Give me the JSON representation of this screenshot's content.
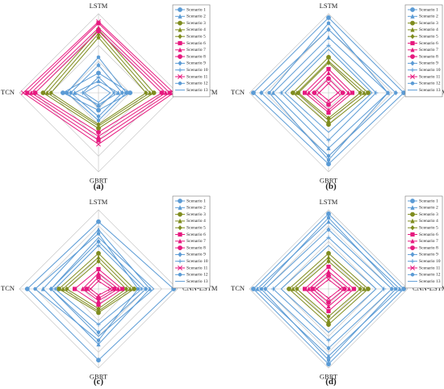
{
  "chart_data": [
    {
      "type": "radar",
      "panel_label": "(a)",
      "axes": [
        "LSTM",
        "CNN-LSTM",
        "GBRT",
        "TCN"
      ],
      "grid": true,
      "legend_position": "right",
      "series": [
        {
          "name": "Scenario 1",
          "color": "#5b9bd5",
          "marker": "circle",
          "values": {
            "LSTM": 0.25,
            "CNN-LSTM": 0.4,
            "GBRT": 0.22,
            "TCN": 0.45
          }
        },
        {
          "name": "Scenario 2",
          "color": "#5b9bd5",
          "marker": "triangle",
          "values": {
            "LSTM": 0.15,
            "CNN-LSTM": 0.25,
            "GBRT": 0.15,
            "TCN": 0.3
          }
        },
        {
          "name": "Scenario 3",
          "color": "#7f8c1e",
          "marker": "circle",
          "values": {
            "LSTM": 0.8,
            "CNN-LSTM": 0.7,
            "GBRT": 0.45,
            "TCN": 0.7
          }
        },
        {
          "name": "Scenario 4",
          "color": "#7f8c1e",
          "marker": "triangle",
          "values": {
            "LSTM": 0.75,
            "CNN-LSTM": 0.65,
            "GBRT": 0.42,
            "TCN": 0.65
          }
        },
        {
          "name": "Scenario 5",
          "color": "#7f8c1e",
          "marker": "diamond",
          "values": {
            "LSTM": 0.7,
            "CNN-LSTM": 0.6,
            "GBRT": 0.4,
            "TCN": 0.6
          }
        },
        {
          "name": "Scenario 6",
          "color": "#e6197f",
          "marker": "square",
          "values": {
            "LSTM": 0.88,
            "CNN-LSTM": 0.9,
            "GBRT": 0.6,
            "TCN": 0.9
          }
        },
        {
          "name": "Scenario 7",
          "color": "#e6197f",
          "marker": "triangle",
          "values": {
            "LSTM": 0.82,
            "CNN-LSTM": 0.85,
            "GBRT": 0.55,
            "TCN": 0.85
          }
        },
        {
          "name": "Scenario 8",
          "color": "#e6197f",
          "marker": "circle",
          "values": {
            "LSTM": 0.78,
            "CNN-LSTM": 0.8,
            "GBRT": 0.5,
            "TCN": 0.8
          }
        },
        {
          "name": "Scenario 9",
          "color": "#5b9bd5",
          "marker": "diamond",
          "values": {
            "LSTM": 0.35,
            "CNN-LSTM": 0.3,
            "GBRT": 0.3,
            "TCN": 0.35
          }
        },
        {
          "name": "Scenario 10",
          "color": "#5b9bd5",
          "marker": "plus",
          "values": {
            "LSTM": 0.2,
            "CNN-LSTM": 0.2,
            "GBRT": 0.18,
            "TCN": 0.2
          }
        },
        {
          "name": "Scenario 11",
          "color": "#e6197f",
          "marker": "cross",
          "values": {
            "LSTM": 0.9,
            "CNN-LSTM": 0.95,
            "GBRT": 0.65,
            "TCN": 0.95
          }
        },
        {
          "name": "Scenario 12",
          "color": "#5b9bd5",
          "marker": "circle-small",
          "values": {
            "LSTM": 0.45,
            "CNN-LSTM": 0.35,
            "GBRT": 0.35,
            "TCN": 0.4
          }
        },
        {
          "name": "Scenario 13",
          "color": "#5b9bd5",
          "marker": "none",
          "values": {
            "LSTM": 0.1,
            "CNN-LSTM": 0.15,
            "GBRT": 0.12,
            "TCN": 0.18
          }
        }
      ]
    },
    {
      "type": "radar",
      "panel_label": "(b)",
      "axes": [
        "LSTM",
        "CNN-LSTM",
        "GBRT",
        "TCN"
      ],
      "grid": true,
      "legend_position": "top-right",
      "series": [
        {
          "name": "Scenario 1",
          "color": "#5b9bd5",
          "marker": "circle",
          "values": {
            "LSTM": 0.95,
            "CNN-LSTM": 0.95,
            "GBRT": 0.9,
            "TCN": 0.95
          }
        },
        {
          "name": "Scenario 2",
          "color": "#5b9bd5",
          "marker": "triangle",
          "values": {
            "LSTM": 0.7,
            "CNN-LSTM": 0.75,
            "GBRT": 0.7,
            "TCN": 0.7
          }
        },
        {
          "name": "Scenario 3",
          "color": "#7f8c1e",
          "marker": "circle",
          "values": {
            "LSTM": 0.45,
            "CNN-LSTM": 0.5,
            "GBRT": 0.4,
            "TCN": 0.45
          }
        },
        {
          "name": "Scenario 4",
          "color": "#7f8c1e",
          "marker": "triangle",
          "values": {
            "LSTM": 0.4,
            "CNN-LSTM": 0.45,
            "GBRT": 0.35,
            "TCN": 0.4
          }
        },
        {
          "name": "Scenario 5",
          "color": "#7f8c1e",
          "marker": "diamond",
          "values": {
            "LSTM": 0.38,
            "CNN-LSTM": 0.4,
            "GBRT": 0.32,
            "TCN": 0.38
          }
        },
        {
          "name": "Scenario 6",
          "color": "#e6197f",
          "marker": "square",
          "values": {
            "LSTM": 0.3,
            "CNN-LSTM": 0.3,
            "GBRT": 0.25,
            "TCN": 0.3
          }
        },
        {
          "name": "Scenario 7",
          "color": "#e6197f",
          "marker": "triangle",
          "values": {
            "LSTM": 0.25,
            "CNN-LSTM": 0.25,
            "GBRT": 0.22,
            "TCN": 0.25
          }
        },
        {
          "name": "Scenario 8",
          "color": "#e6197f",
          "marker": "circle",
          "values": {
            "LSTM": 0.18,
            "CNN-LSTM": 0.18,
            "GBRT": 0.15,
            "TCN": 0.18
          }
        },
        {
          "name": "Scenario 9",
          "color": "#5b9bd5",
          "marker": "diamond",
          "values": {
            "LSTM": 0.8,
            "CNN-LSTM": 0.85,
            "GBRT": 0.8,
            "TCN": 0.85
          }
        },
        {
          "name": "Scenario 10",
          "color": "#5b9bd5",
          "marker": "plus",
          "values": {
            "LSTM": 0.6,
            "CNN-LSTM": 0.6,
            "GBRT": 0.6,
            "TCN": 0.6
          }
        },
        {
          "name": "Scenario 11",
          "color": "#e6197f",
          "marker": "cross",
          "values": {
            "LSTM": 0.12,
            "CNN-LSTM": 0.12,
            "GBRT": 0.1,
            "TCN": 0.12
          }
        },
        {
          "name": "Scenario 12",
          "color": "#5b9bd5",
          "marker": "circle-small",
          "values": {
            "LSTM": 0.88,
            "CNN-LSTM": 0.75,
            "GBRT": 0.85,
            "TCN": 0.75
          }
        },
        {
          "name": "Scenario 13",
          "color": "#5b9bd5",
          "marker": "none",
          "values": {
            "LSTM": 0.55,
            "CNN-LSTM": 0.55,
            "GBRT": 0.5,
            "TCN": 0.55
          }
        }
      ]
    },
    {
      "type": "radar",
      "panel_label": "(c)",
      "axes": [
        "LSTM",
        "CNN-LSTM",
        "GBRT",
        "TCN"
      ],
      "grid": true,
      "legend_position": "right",
      "series": [
        {
          "name": "Scenario 1",
          "color": "#5b9bd5",
          "marker": "circle",
          "values": {
            "LSTM": 0.85,
            "CNN-LSTM": 0.95,
            "GBRT": 0.9,
            "TCN": 0.9
          }
        },
        {
          "name": "Scenario 2",
          "color": "#5b9bd5",
          "marker": "triangle",
          "values": {
            "LSTM": 0.75,
            "CNN-LSTM": 0.65,
            "GBRT": 0.7,
            "TCN": 0.7
          }
        },
        {
          "name": "Scenario 3",
          "color": "#7f8c1e",
          "marker": "circle",
          "values": {
            "LSTM": 0.45,
            "CNN-LSTM": 0.45,
            "GBRT": 0.3,
            "TCN": 0.5
          }
        },
        {
          "name": "Scenario 4",
          "color": "#7f8c1e",
          "marker": "triangle",
          "values": {
            "LSTM": 0.4,
            "CNN-LSTM": 0.4,
            "GBRT": 0.28,
            "TCN": 0.45
          }
        },
        {
          "name": "Scenario 5",
          "color": "#7f8c1e",
          "marker": "diamond",
          "values": {
            "LSTM": 0.35,
            "CNN-LSTM": 0.35,
            "GBRT": 0.25,
            "TCN": 0.4
          }
        },
        {
          "name": "Scenario 6",
          "color": "#e6197f",
          "marker": "square",
          "values": {
            "LSTM": 0.25,
            "CNN-LSTM": 0.3,
            "GBRT": 0.2,
            "TCN": 0.3
          }
        },
        {
          "name": "Scenario 7",
          "color": "#e6197f",
          "marker": "triangle",
          "values": {
            "LSTM": 0.2,
            "CNN-LSTM": 0.25,
            "GBRT": 0.15,
            "TCN": 0.2
          }
        },
        {
          "name": "Scenario 8",
          "color": "#e6197f",
          "marker": "circle",
          "values": {
            "LSTM": 0.15,
            "CNN-LSTM": 0.2,
            "GBRT": 0.12,
            "TCN": 0.15
          }
        },
        {
          "name": "Scenario 9",
          "color": "#5b9bd5",
          "marker": "diamond",
          "values": {
            "LSTM": 0.6,
            "CNN-LSTM": 0.6,
            "GBRT": 0.55,
            "TCN": 0.6
          }
        },
        {
          "name": "Scenario 10",
          "color": "#5b9bd5",
          "marker": "plus",
          "values": {
            "LSTM": 0.55,
            "CNN-LSTM": 0.55,
            "GBRT": 0.45,
            "TCN": 0.55
          }
        },
        {
          "name": "Scenario 11",
          "color": "#e6197f",
          "marker": "cross",
          "values": {
            "LSTM": 0.1,
            "CNN-LSTM": 0.15,
            "GBRT": 0.08,
            "TCN": 0.1
          }
        },
        {
          "name": "Scenario 12",
          "color": "#5b9bd5",
          "marker": "circle-small",
          "values": {
            "LSTM": 0.7,
            "CNN-LSTM": 0.5,
            "GBRT": 0.65,
            "TCN": 0.8
          }
        },
        {
          "name": "Scenario 13",
          "color": "#5b9bd5",
          "marker": "none",
          "values": {
            "LSTM": 0.65,
            "CNN-LSTM": 0.7,
            "GBRT": 0.6,
            "TCN": 0.6
          }
        }
      ]
    },
    {
      "type": "radar",
      "panel_label": "(d)",
      "axes": [
        "LSTM",
        "CNN-LSTM",
        "GBRT",
        "TCN"
      ],
      "grid": true,
      "legend_position": "right",
      "series": [
        {
          "name": "Scenario 1",
          "color": "#5b9bd5",
          "marker": "circle",
          "values": {
            "LSTM": 0.95,
            "CNN-LSTM": 0.95,
            "GBRT": 0.95,
            "TCN": 0.95
          }
        },
        {
          "name": "Scenario 2",
          "color": "#5b9bd5",
          "marker": "triangle",
          "values": {
            "LSTM": 0.85,
            "CNN-LSTM": 0.9,
            "GBRT": 0.85,
            "TCN": 0.9
          }
        },
        {
          "name": "Scenario 3",
          "color": "#7f8c1e",
          "marker": "circle",
          "values": {
            "LSTM": 0.45,
            "CNN-LSTM": 0.5,
            "GBRT": 0.45,
            "TCN": 0.5
          }
        },
        {
          "name": "Scenario 4",
          "color": "#7f8c1e",
          "marker": "triangle",
          "values": {
            "LSTM": 0.4,
            "CNN-LSTM": 0.45,
            "GBRT": 0.4,
            "TCN": 0.45
          }
        },
        {
          "name": "Scenario 5",
          "color": "#7f8c1e",
          "marker": "diamond",
          "values": {
            "LSTM": 0.35,
            "CNN-LSTM": 0.4,
            "GBRT": 0.35,
            "TCN": 0.4
          }
        },
        {
          "name": "Scenario 6",
          "color": "#e6197f",
          "marker": "square",
          "values": {
            "LSTM": 0.28,
            "CNN-LSTM": 0.32,
            "GBRT": 0.28,
            "TCN": 0.3
          }
        },
        {
          "name": "Scenario 7",
          "color": "#e6197f",
          "marker": "triangle",
          "values": {
            "LSTM": 0.22,
            "CNN-LSTM": 0.26,
            "GBRT": 0.22,
            "TCN": 0.25
          }
        },
        {
          "name": "Scenario 8",
          "color": "#e6197f",
          "marker": "circle",
          "values": {
            "LSTM": 0.17,
            "CNN-LSTM": 0.2,
            "GBRT": 0.17,
            "TCN": 0.2
          }
        },
        {
          "name": "Scenario 9",
          "color": "#5b9bd5",
          "marker": "diamond",
          "values": {
            "LSTM": 0.75,
            "CNN-LSTM": 0.8,
            "GBRT": 0.75,
            "TCN": 0.8
          }
        },
        {
          "name": "Scenario 10",
          "color": "#5b9bd5",
          "marker": "plus",
          "values": {
            "LSTM": 0.65,
            "CNN-LSTM": 0.7,
            "GBRT": 0.65,
            "TCN": 0.7
          }
        },
        {
          "name": "Scenario 11",
          "color": "#e6197f",
          "marker": "cross",
          "values": {
            "LSTM": 0.12,
            "CNN-LSTM": 0.15,
            "GBRT": 0.12,
            "TCN": 0.15
          }
        },
        {
          "name": "Scenario 12",
          "color": "#5b9bd5",
          "marker": "circle-small",
          "values": {
            "LSTM": 0.9,
            "CNN-LSTM": 0.85,
            "GBRT": 0.9,
            "TCN": 0.85
          }
        },
        {
          "name": "Scenario 13",
          "color": "#5b9bd5",
          "marker": "none",
          "values": {
            "LSTM": 0.55,
            "CNN-LSTM": 0.6,
            "GBRT": 0.55,
            "TCN": 0.6
          }
        }
      ]
    }
  ]
}
